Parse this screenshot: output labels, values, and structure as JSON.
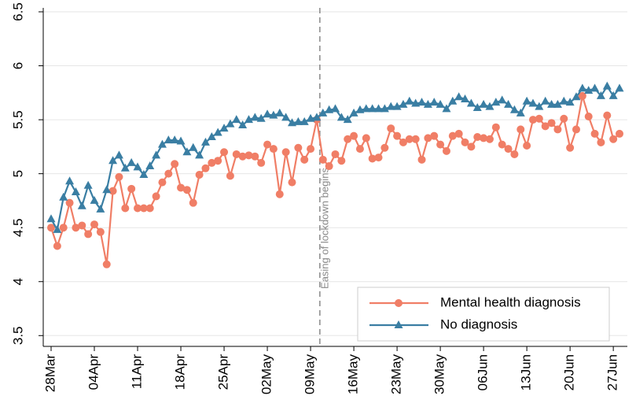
{
  "chart_data": {
    "type": "line",
    "categories": [
      "28Mar",
      null,
      null,
      null,
      null,
      null,
      null,
      "04Apr",
      null,
      null,
      null,
      null,
      null,
      null,
      "11Apr",
      null,
      null,
      null,
      null,
      null,
      null,
      "18Apr",
      null,
      null,
      null,
      null,
      null,
      null,
      "25Apr",
      null,
      null,
      null,
      null,
      null,
      null,
      "02May",
      null,
      null,
      null,
      null,
      null,
      null,
      "09May",
      null,
      null,
      null,
      null,
      null,
      null,
      "16May",
      null,
      null,
      null,
      null,
      null,
      null,
      "23May",
      null,
      null,
      null,
      null,
      null,
      null,
      "30May",
      null,
      null,
      null,
      null,
      null,
      null,
      "06Jun",
      null,
      null,
      null,
      null,
      null,
      null,
      "13Jun",
      null,
      null,
      null,
      null,
      null,
      null,
      "20Jun",
      null,
      null,
      null,
      null,
      null,
      null,
      "27Jun",
      null
    ],
    "series": [
      {
        "name": "Mental health diagnosis",
        "color": "#f07e66",
        "marker": "circle",
        "values": [
          4.5,
          4.33,
          4.5,
          4.73,
          4.5,
          4.52,
          4.44,
          4.53,
          4.46,
          4.16,
          4.84,
          4.97,
          4.68,
          4.86,
          4.68,
          4.68,
          4.68,
          4.79,
          4.92,
          5.0,
          5.09,
          4.87,
          4.85,
          4.73,
          4.99,
          5.05,
          5.1,
          5.12,
          5.2,
          4.98,
          5.18,
          5.16,
          5.17,
          5.16,
          5.1,
          5.27,
          5.23,
          4.81,
          5.2,
          4.92,
          5.24,
          5.13,
          5.23,
          5.5,
          5.13,
          5.07,
          5.18,
          5.12,
          5.32,
          5.35,
          5.23,
          5.33,
          5.14,
          5.15,
          5.24,
          5.42,
          5.35,
          5.29,
          5.32,
          5.32,
          5.13,
          5.33,
          5.35,
          5.27,
          5.21,
          5.35,
          5.37,
          5.29,
          5.25,
          5.34,
          5.33,
          5.32,
          5.43,
          5.27,
          5.23,
          5.18,
          5.41,
          5.26,
          5.5,
          5.51,
          5.44,
          5.47,
          5.41,
          5.51,
          5.24,
          5.41,
          5.72,
          5.53,
          5.37,
          5.29,
          5.54,
          5.32,
          5.37
        ]
      },
      {
        "name": "No diagnosis",
        "color": "#3a7ea3",
        "marker": "triangle",
        "values": [
          4.58,
          4.48,
          4.78,
          4.93,
          4.83,
          4.7,
          4.89,
          4.75,
          4.67,
          4.85,
          5.12,
          5.17,
          5.05,
          5.1,
          5.06,
          4.99,
          5.07,
          5.17,
          5.27,
          5.31,
          5.31,
          5.3,
          5.2,
          5.24,
          5.17,
          5.29,
          5.34,
          5.38,
          5.42,
          5.46,
          5.5,
          5.45,
          5.5,
          5.52,
          5.51,
          5.55,
          5.54,
          5.56,
          5.52,
          5.47,
          5.48,
          5.48,
          5.51,
          5.52,
          5.56,
          5.59,
          5.6,
          5.52,
          5.5,
          5.56,
          5.59,
          5.6,
          5.6,
          5.6,
          5.6,
          5.62,
          5.62,
          5.64,
          5.67,
          5.65,
          5.66,
          5.64,
          5.66,
          5.64,
          5.6,
          5.67,
          5.71,
          5.69,
          5.65,
          5.61,
          5.64,
          5.62,
          5.66,
          5.68,
          5.64,
          5.59,
          5.56,
          5.67,
          5.65,
          5.62,
          5.67,
          5.64,
          5.64,
          5.67,
          5.66,
          5.71,
          5.79,
          5.77,
          5.79,
          5.72,
          5.81,
          5.72,
          5.79
        ]
      }
    ],
    "ylim": [
      3.4,
      6.5
    ],
    "yticks": [
      3.5,
      4,
      4.5,
      5,
      5.5,
      6,
      6.5
    ],
    "grid": true,
    "annotation": {
      "text": "Easing of lockdown begins",
      "x": 43.5
    }
  }
}
